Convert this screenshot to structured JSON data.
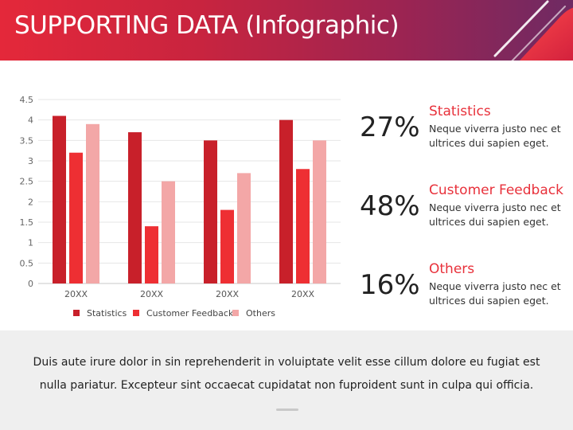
{
  "header": {
    "title": "SUPPORTING DATA (Infographic)"
  },
  "chart_data": {
    "type": "bar",
    "categories": [
      "20XX",
      "20XX",
      "20XX",
      "20XX"
    ],
    "series": [
      {
        "name": "Statistics",
        "values": [
          4.1,
          3.7,
          3.5,
          4.0
        ],
        "color": "#c8202a"
      },
      {
        "name": "Customer Feedback",
        "values": [
          3.2,
          1.4,
          1.8,
          2.8
        ],
        "color": "#ee2f33"
      },
      {
        "name": "Others",
        "values": [
          3.9,
          2.5,
          2.7,
          3.5
        ],
        "color": "#f3a7a7"
      }
    ],
    "yticks": [
      "0",
      "0.5",
      "1",
      "1.5",
      "2",
      "2.5",
      "3",
      "3.5",
      "4",
      "4.5"
    ],
    "ylim": [
      0,
      4.5
    ],
    "grid": true,
    "legend": "bottom"
  },
  "stats": [
    {
      "percent": "27%",
      "title": "Statistics",
      "desc": "Neque viverra justo nec et ultrices dui sapien eget."
    },
    {
      "percent": "48%",
      "title": "Customer Feedback",
      "desc": "Neque viverra justo nec et ultrices dui sapien eget."
    },
    {
      "percent": "16%",
      "title": "Others",
      "desc": "Neque viverra justo nec et ultrices dui sapien eget."
    }
  ],
  "footer": {
    "text": "Duis aute irure dolor in sin reprehenderit in voluiptate velit esse cillum dolore eu fugiat est nulla pariatur. Excepteur sint occaecat cupidatat non fuproident sunt in culpa qui officia."
  }
}
